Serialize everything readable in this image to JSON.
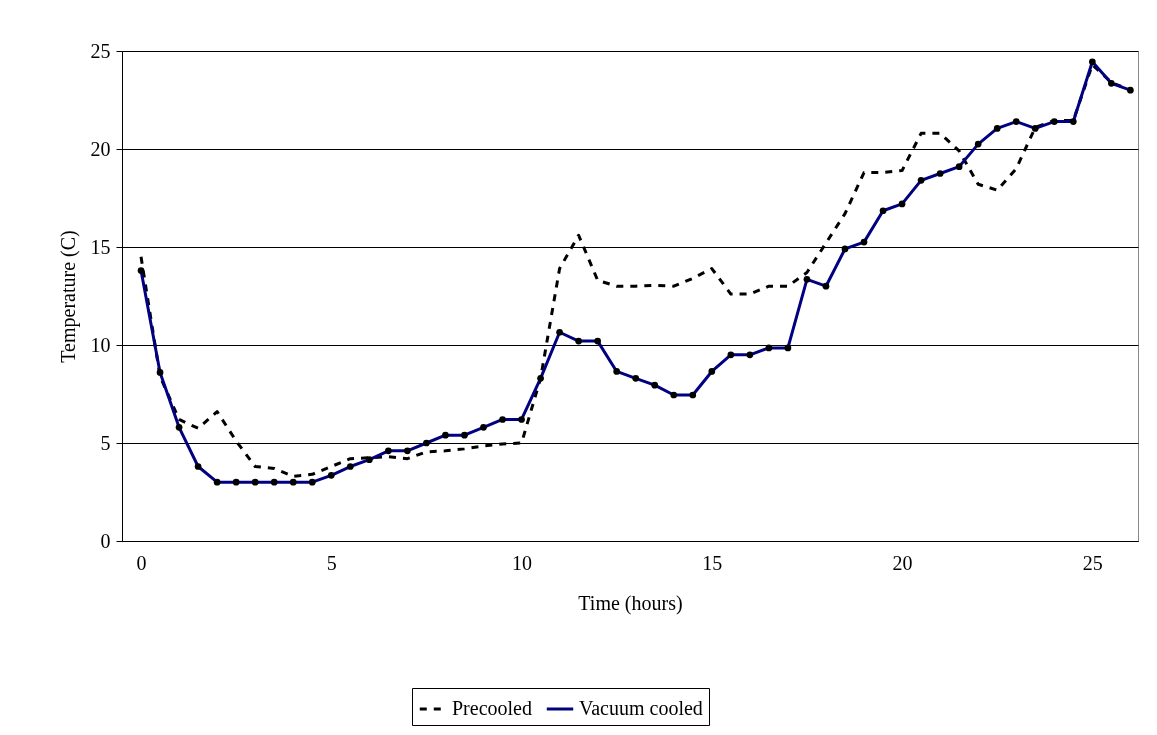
{
  "chart_data": {
    "type": "line",
    "xlabel": "Time (hours)",
    "ylabel": "Temperature (C)",
    "xlim": [
      -0.5,
      26.2
    ],
    "xticks": [
      0,
      5,
      10,
      15,
      20,
      25
    ],
    "ylim": [
      0,
      25
    ],
    "yticks": [
      0,
      5,
      10,
      15,
      20,
      25
    ],
    "grid": "y",
    "legend": "bottom",
    "series": [
      {
        "name": "Precooled",
        "color": "#000000",
        "line_style": "dashed",
        "marker": "none",
        "x": [
          0,
          0.5,
          1,
          1.5,
          2,
          2.5,
          3,
          3.5,
          4,
          4.5,
          5,
          5.5,
          6,
          6.5,
          7,
          7.5,
          8,
          8.5,
          9,
          9.5,
          10,
          10.5,
          11,
          11.5,
          12,
          12.5,
          13,
          13.5,
          14,
          14.5,
          15,
          15.5,
          16,
          16.5,
          17,
          17.5,
          18,
          18.5,
          19,
          19.5,
          20,
          20.5,
          21,
          21.5,
          22,
          22.5,
          23,
          23.5,
          24,
          24.5,
          25,
          25.5,
          26
        ],
        "values": [
          14.5,
          8.4,
          6.2,
          5.75,
          6.6,
          5.1,
          3.8,
          3.7,
          3.3,
          3.4,
          3.8,
          4.2,
          4.25,
          4.3,
          4.2,
          4.55,
          4.6,
          4.7,
          4.85,
          4.95,
          5.0,
          8.3,
          13.9,
          15.6,
          13.3,
          13.0,
          13.0,
          13.05,
          13.0,
          13.4,
          13.9,
          12.6,
          12.6,
          13.0,
          13.0,
          13.7,
          15.2,
          16.7,
          18.8,
          18.8,
          18.9,
          20.8,
          20.8,
          19.9,
          18.2,
          17.9,
          19.0,
          21.1,
          21.45,
          21.45,
          24.3,
          23.4,
          23.0
        ]
      },
      {
        "name": "Vacuum cooled",
        "color": "#000080",
        "line_style": "solid",
        "marker": "circle",
        "x": [
          0,
          0.5,
          1,
          1.5,
          2,
          2.5,
          3,
          3.5,
          4,
          4.5,
          5,
          5.5,
          6,
          6.5,
          7,
          7.5,
          8,
          8.5,
          9,
          9.5,
          10,
          10.5,
          11,
          11.5,
          12,
          12.5,
          13,
          13.5,
          14,
          14.5,
          15,
          15.5,
          16,
          16.5,
          17,
          17.5,
          18,
          18.5,
          19,
          19.5,
          20,
          20.5,
          21,
          21.5,
          22,
          22.5,
          23,
          23.5,
          24,
          24.5,
          25,
          25.5,
          26
        ],
        "values": [
          13.8,
          8.6,
          5.8,
          3.8,
          3.0,
          3.0,
          3.0,
          3.0,
          3.0,
          3.0,
          3.35,
          3.8,
          4.15,
          4.6,
          4.6,
          5.0,
          5.4,
          5.4,
          5.8,
          6.2,
          6.2,
          8.3,
          10.65,
          10.2,
          10.2,
          8.65,
          8.3,
          7.95,
          7.45,
          7.45,
          8.65,
          9.5,
          9.5,
          9.85,
          9.85,
          13.35,
          13.0,
          14.9,
          15.25,
          16.85,
          17.2,
          18.4,
          18.75,
          19.1,
          20.25,
          21.05,
          21.4,
          21.05,
          21.4,
          21.4,
          24.45,
          23.35,
          23.0
        ]
      }
    ]
  }
}
